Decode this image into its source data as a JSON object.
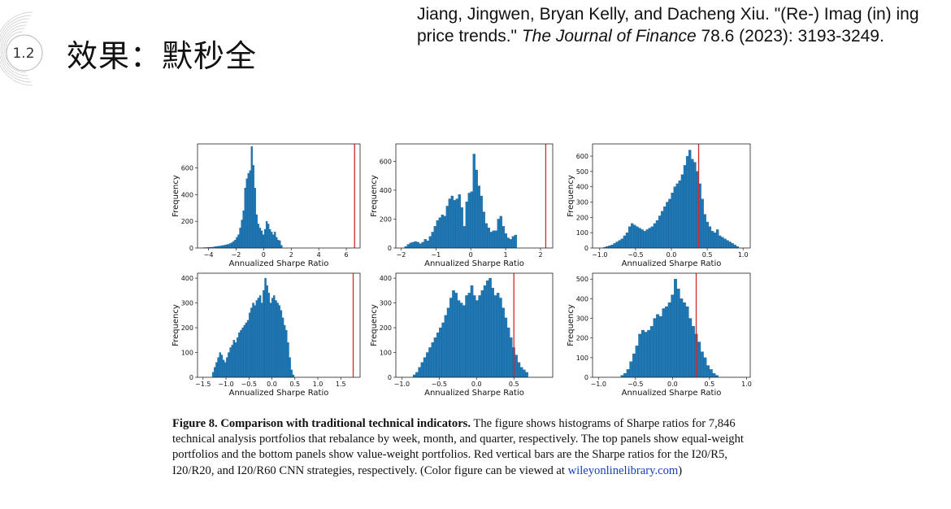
{
  "slide": {
    "number": "1.2",
    "title": "效果：默秒全"
  },
  "citation": {
    "prefix": "Jiang, Jingwen, Bryan Kelly, and Dacheng Xiu. \"(Re-) Imag (in) ing price trends.\" ",
    "journal": "The Journal of Finance",
    "suffix": " 78.6 (2023): 3193-3249."
  },
  "caption": {
    "bold": "Figure 8.  Comparison with traditional technical indicators.",
    "text": " The figure shows histograms of Sharpe ratios for 7,846 technical analysis portfolios that rebalance by week, month, and quarter, respectively. The top panels show equal-weight portfolios and the bottom panels show value-weight portfolios. Red vertical bars are the Sharpe ratios for the I20/R5, I20/R20, and I20/R60 CNN strategies, respectively. (Color figure can be viewed at ",
    "link": "wileyonlinelibrary.com",
    "end": ")"
  },
  "colors": {
    "bar": "#1f77b4",
    "bar_edge": "#0f5a8c",
    "marker": "#d62728",
    "axis": "#222222"
  },
  "chart_data": [
    {
      "type": "bar",
      "panel": "top-left",
      "xlabel": "Annualized Sharpe Ratio",
      "ylabel": "Frequency",
      "xlim": [
        -4.8,
        7.0
      ],
      "ylim": [
        0,
        780
      ],
      "xticks": [
        -4,
        -2,
        0,
        2,
        4,
        6
      ],
      "xtick_labels": [
        "−4",
        "−2",
        "0",
        "2",
        "4",
        "6"
      ],
      "yticks": [
        0,
        200,
        400,
        600
      ],
      "bin_start": -4.4,
      "bin_width": 0.12,
      "counts": [
        3,
        3,
        4,
        5,
        6,
        6,
        8,
        10,
        12,
        14,
        15,
        18,
        20,
        22,
        26,
        28,
        34,
        40,
        50,
        60,
        80,
        100,
        150,
        210,
        280,
        450,
        520,
        560,
        580,
        760,
        620,
        450,
        250,
        180,
        150,
        130,
        100,
        140,
        200,
        180,
        140,
        120,
        100,
        120,
        80,
        60,
        55,
        20
      ],
      "marker_x": 6.6
    },
    {
      "type": "bar",
      "panel": "top-middle",
      "xlabel": "Annualized Sharpe Ratio",
      "ylabel": "Frequency",
      "xlim": [
        -2.15,
        2.35
      ],
      "ylim": [
        0,
        720
      ],
      "xticks": [
        -2,
        -1,
        0,
        1,
        2
      ],
      "xtick_labels": [
        "−2",
        "−1",
        "0",
        "1",
        "2"
      ],
      "yticks": [
        0,
        200,
        400,
        600
      ],
      "bin_start": -1.9,
      "bin_width": 0.07,
      "counts": [
        10,
        25,
        35,
        40,
        45,
        40,
        30,
        40,
        60,
        50,
        80,
        110,
        150,
        190,
        210,
        230,
        220,
        290,
        340,
        360,
        330,
        340,
        370,
        280,
        150,
        320,
        380,
        390,
        650,
        540,
        430,
        360,
        250,
        170,
        140,
        110,
        120,
        120,
        200,
        220,
        150,
        100,
        70,
        60,
        80,
        90
      ],
      "marker_x": 2.15
    },
    {
      "type": "bar",
      "panel": "top-right",
      "xlabel": "Annualized Sharpe Ratio",
      "ylabel": "Frequency",
      "xlim": [
        -1.1,
        1.1
      ],
      "ylim": [
        0,
        680
      ],
      "xticks": [
        -1.0,
        -0.5,
        0.0,
        0.5,
        1.0
      ],
      "xtick_labels": [
        "−1.0",
        "−0.5",
        "0.0",
        "0.5",
        "1.0"
      ],
      "yticks": [
        0,
        100,
        200,
        300,
        400,
        500,
        600
      ],
      "bin_start": -0.95,
      "bin_width": 0.035,
      "counts": [
        5,
        10,
        15,
        20,
        30,
        40,
        50,
        60,
        80,
        100,
        140,
        160,
        150,
        140,
        130,
        120,
        110,
        120,
        130,
        140,
        160,
        180,
        210,
        240,
        270,
        300,
        320,
        360,
        400,
        420,
        440,
        480,
        540,
        600,
        640,
        580,
        560,
        500,
        420,
        320,
        220,
        170,
        140,
        110,
        100,
        120,
        80,
        70,
        60,
        50,
        40,
        30,
        20,
        10
      ],
      "marker_x": 0.38
    },
    {
      "type": "bar",
      "panel": "bottom-left",
      "xlabel": "Annualized Sharpe Ratio",
      "ylabel": "Frequency",
      "xlim": [
        -1.62,
        1.92
      ],
      "ylim": [
        0,
        420
      ],
      "xticks": [
        -1.5,
        -1.0,
        -0.5,
        0.0,
        0.5,
        1.0,
        1.5
      ],
      "xtick_labels": [
        "−1.5",
        "−1.0",
        "−0.5",
        "0.0",
        "0.5",
        "1.0",
        "1.5"
      ],
      "yticks": [
        0,
        100,
        200,
        300,
        400
      ],
      "bin_start": -1.3,
      "bin_width": 0.038,
      "counts": [
        20,
        40,
        60,
        80,
        100,
        90,
        70,
        60,
        80,
        100,
        120,
        130,
        150,
        140,
        160,
        180,
        190,
        200,
        210,
        220,
        230,
        260,
        280,
        300,
        290,
        310,
        320,
        330,
        300,
        350,
        400,
        370,
        340,
        300,
        320,
        330,
        310,
        300,
        290,
        270,
        240,
        210,
        190,
        140,
        80,
        30,
        10
      ],
      "marker_x": 1.77
    },
    {
      "type": "bar",
      "panel": "bottom-middle",
      "xlabel": "Annualized Sharpe Ratio",
      "ylabel": "Frequency",
      "xlim": [
        -1.08,
        1.02
      ],
      "ylim": [
        0,
        420
      ],
      "xticks": [
        -1.0,
        -0.5,
        0.0,
        0.5
      ],
      "xtick_labels": [
        "−1.0",
        "−0.5",
        "0.0",
        "0.5"
      ],
      "yticks": [
        0,
        100,
        200,
        300,
        400
      ],
      "bin_start": -0.85,
      "bin_width": 0.035,
      "counts": [
        10,
        20,
        40,
        60,
        80,
        100,
        120,
        140,
        160,
        180,
        200,
        220,
        250,
        280,
        320,
        350,
        340,
        310,
        300,
        290,
        330,
        340,
        370,
        330,
        310,
        330,
        350,
        370,
        390,
        400,
        360,
        330,
        340,
        320,
        280,
        240,
        200,
        160,
        120,
        90,
        60,
        40,
        30,
        20
      ],
      "marker_x": 0.5
    },
    {
      "type": "bar",
      "panel": "bottom-right",
      "xlabel": "Annualized Sharpe Ratio",
      "ylabel": "Frequency",
      "xlim": [
        -1.08,
        1.05
      ],
      "ylim": [
        0,
        530
      ],
      "xticks": [
        -1.0,
        -0.5,
        0.0,
        0.5,
        1.0
      ],
      "xtick_labels": [
        "−1.0",
        "−0.5",
        "0.0",
        "0.5",
        "1.0"
      ],
      "yticks": [
        0,
        100,
        200,
        300,
        400,
        500
      ],
      "bin_start": -0.7,
      "bin_width": 0.04,
      "counts": [
        10,
        20,
        40,
        80,
        120,
        160,
        220,
        240,
        230,
        240,
        260,
        300,
        320,
        310,
        350,
        360,
        380,
        420,
        500,
        450,
        400,
        380,
        360,
        300,
        260,
        220,
        180,
        130,
        100,
        60,
        40,
        20,
        10
      ],
      "marker_x": 0.32
    }
  ]
}
